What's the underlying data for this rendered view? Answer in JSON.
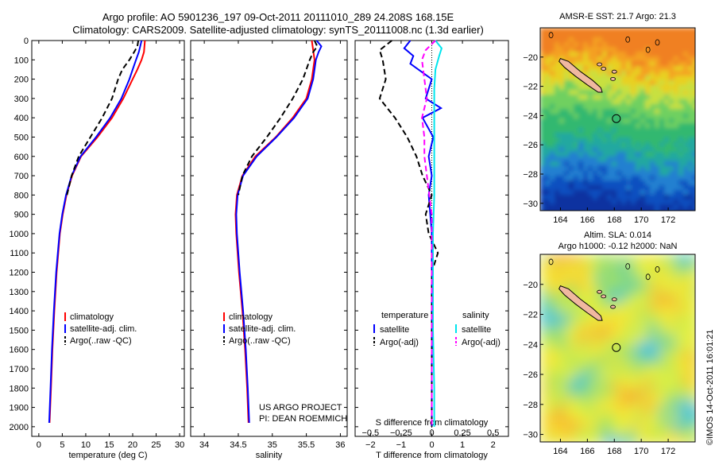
{
  "header": {
    "title1": "Argo profile: AO 5901236_197 09-Oct-2011 20111010_289 24.208S 168.15E",
    "title2": "Climatology: CARS2009. Satellite-adjusted climatology: synTS_20111008.nc (1.3d earlier)"
  },
  "maps": {
    "sst_title": "AMSR-E SST: 21.7 Argo: 21.3",
    "sla_title1": "Altim. SLA: 0.014",
    "sla_title2": "Argo h1000: -0.12 h2000: NaN"
  },
  "credit": "©IMOS 14-Oct-2011 16:01:21",
  "project": {
    "line1": "US ARGO PROJECT",
    "line2": "PI: DEAN ROEMMICH"
  },
  "colors": {
    "red": "#ff0000",
    "blue": "#0000ff",
    "black": "#000000",
    "cyan": "#00e5ee",
    "magenta": "#ff00ff",
    "land": "#f0b8a0"
  },
  "chart_data": [
    {
      "type": "line",
      "xlabel": "temperature (deg C)",
      "ylabel": "",
      "xlim": [
        -1.5,
        31
      ],
      "ylim": [
        2050,
        0
      ],
      "xticks": [
        0,
        5,
        10,
        15,
        20,
        25,
        30
      ],
      "yticks": [
        0,
        100,
        200,
        300,
        400,
        500,
        600,
        700,
        800,
        900,
        1000,
        1100,
        1200,
        1300,
        1400,
        1500,
        1600,
        1700,
        1800,
        1900,
        2000
      ],
      "legend": [
        "climatology",
        "satellite-adj. clim.",
        "Argo(..raw -QC)"
      ],
      "legend_position": "lower-middle",
      "series": [
        {
          "name": "climatology",
          "color": "#ff0000",
          "dash": "solid",
          "depth": [
            0,
            30,
            60,
            100,
            150,
            200,
            300,
            400,
            500,
            600,
            700,
            800,
            900,
            1000,
            1200,
            1400,
            1600,
            1800,
            1980
          ],
          "values": [
            22.6,
            22.5,
            22.4,
            21.9,
            21.0,
            20.0,
            18.0,
            15.6,
            12.5,
            9.0,
            7.1,
            5.9,
            5.1,
            4.5,
            3.8,
            3.3,
            2.9,
            2.6,
            2.3
          ]
        },
        {
          "name": "satellite-adj. clim.",
          "color": "#0000ff",
          "dash": "solid",
          "depth": [
            0,
            30,
            60,
            100,
            150,
            200,
            300,
            400,
            500,
            600,
            700,
            800,
            900,
            1000,
            1200,
            1400,
            1600,
            1800,
            1980
          ],
          "values": [
            21.9,
            21.6,
            21.3,
            20.7,
            20.0,
            19.3,
            17.6,
            15.2,
            12.2,
            8.9,
            7.0,
            5.8,
            5.0,
            4.4,
            3.7,
            3.2,
            2.8,
            2.5,
            2.2
          ]
        },
        {
          "name": "Argo(..raw -QC)",
          "color": "#000000",
          "dash": "dash",
          "depth": [
            0,
            30,
            60,
            100,
            150,
            200,
            300,
            400,
            500,
            600,
            700,
            800
          ],
          "values": [
            21.2,
            21.0,
            20.3,
            19.3,
            17.8,
            16.9,
            15.6,
            13.5,
            11.0,
            8.5,
            7.0,
            6.0
          ]
        }
      ]
    },
    {
      "type": "line",
      "xlabel": "salinity",
      "ylabel": "",
      "xlim": [
        33.8,
        36.1
      ],
      "ylim": [
        2050,
        0
      ],
      "xticks": [
        34,
        34.5,
        35,
        35.5,
        36
      ],
      "legend": [
        "climatology",
        "satellite-adj. clim.",
        "Argo(..raw -QC)"
      ],
      "legend_position": "lower-middle",
      "series": [
        {
          "name": "climatology",
          "color": "#ff0000",
          "dash": "solid",
          "depth": [
            0,
            50,
            100,
            200,
            300,
            400,
            500,
            600,
            700,
            800,
            900,
            1000,
            1200,
            1400,
            1600,
            1800,
            1980
          ],
          "values": [
            35.58,
            35.6,
            35.62,
            35.58,
            35.5,
            35.3,
            35.05,
            34.75,
            34.56,
            34.48,
            34.46,
            34.47,
            34.51,
            34.56,
            34.6,
            34.63,
            34.65
          ]
        },
        {
          "name": "satellite-adj. clim.",
          "color": "#0000ff",
          "dash": "solid",
          "depth": [
            0,
            30,
            60,
            100,
            200,
            300,
            400,
            500,
            600,
            700,
            800,
            900,
            1000,
            1200,
            1400,
            1600,
            1800,
            1980
          ],
          "values": [
            35.65,
            35.72,
            35.68,
            35.64,
            35.6,
            35.52,
            35.32,
            35.06,
            34.77,
            34.57,
            34.49,
            34.47,
            34.48,
            34.52,
            34.57,
            34.61,
            34.64,
            34.66
          ]
        },
        {
          "name": "Argo(..raw -QC)",
          "color": "#000000",
          "dash": "dash",
          "depth": [
            0,
            30,
            60,
            100,
            200,
            300,
            400,
            500,
            600,
            700,
            800
          ],
          "values": [
            35.62,
            35.66,
            35.6,
            35.55,
            35.45,
            35.3,
            35.12,
            34.92,
            34.7,
            34.56,
            34.5
          ]
        }
      ]
    },
    {
      "type": "line",
      "xlabel": "T difference from climatology",
      "xlabel_top": "S difference from climatology",
      "ylabel": "",
      "xlim": [
        -2.5,
        2.5
      ],
      "ylim": [
        2050,
        0
      ],
      "xticks": [
        -2,
        -1,
        0,
        1,
        2
      ],
      "xtick_labels": [
        "−2",
        "−1",
        "0",
        "1",
        "2"
      ],
      "xticks_s": [
        -0.5,
        -0.25,
        0,
        0.25,
        0.5
      ],
      "xtick_labels_s": [
        "−0.5",
        "−0.25",
        "0",
        "0.25",
        "0.5"
      ],
      "legend_header_t": "temperature",
      "legend_header_s": "salinity",
      "legend": [
        "satellite",
        "Argo(-adj)",
        "satellite",
        "Argo(-adj)"
      ],
      "legend_position": "lower-middle",
      "series": [
        {
          "name": "satellite",
          "group": "temperature",
          "color": "#0000ff",
          "dash": "solid",
          "units": "T",
          "depth": [
            0,
            40,
            80,
            120,
            200,
            300,
            350,
            400,
            500,
            600,
            700,
            800,
            900,
            1000,
            1200,
            1500,
            2000
          ],
          "values": [
            -0.7,
            -0.9,
            -0.6,
            -0.7,
            0.0,
            -0.2,
            0.3,
            -0.3,
            0.05,
            -0.1,
            0.0,
            -0.1,
            -0.05,
            0.0,
            0.0,
            0.0,
            0.0
          ]
        },
        {
          "name": "Argo(-adj)",
          "group": "temperature",
          "color": "#000000",
          "dash": "dash",
          "units": "T",
          "depth": [
            0,
            50,
            100,
            200,
            300,
            400,
            500,
            600,
            700,
            800,
            900,
            1000,
            1100,
            1200,
            1500,
            2000
          ],
          "values": [
            -1.3,
            -1.7,
            -1.6,
            -1.5,
            -1.7,
            -1.2,
            -0.8,
            -0.5,
            -0.3,
            0.0,
            -0.2,
            -0.1,
            0.2,
            0.0,
            0.0,
            0.0
          ]
        },
        {
          "name": "satellite",
          "group": "salinity",
          "color": "#00e5ee",
          "dash": "solid",
          "units": "S",
          "depth": [
            0,
            40,
            80,
            150,
            250,
            400,
            600,
            800,
            1000,
            1200,
            1500,
            1800,
            2000
          ],
          "values": [
            0.03,
            0.08,
            0.06,
            0.03,
            0.02,
            0.02,
            0.02,
            0.02,
            0.01,
            0.01,
            0.01,
            0.02,
            0.02
          ]
        },
        {
          "name": "Argo(-adj)",
          "group": "salinity",
          "color": "#ff00ff",
          "dash": "dash",
          "units": "S",
          "depth": [
            0,
            50,
            100,
            200,
            300,
            400,
            500,
            600,
            700,
            800,
            900,
            1000,
            1200,
            1500,
            2000
          ],
          "values": [
            0.03,
            -0.05,
            -0.08,
            -0.06,
            -0.04,
            -0.08,
            -0.06,
            -0.06,
            -0.04,
            -0.02,
            0.0,
            0.0,
            0.0,
            0.0,
            0.0
          ]
        }
      ]
    },
    {
      "type": "heatmap",
      "title": "AMSR-E SST: 21.7 Argo: 21.3",
      "xlim": [
        162.5,
        174
      ],
      "ylim": [
        -30.5,
        -18
      ],
      "xticks": [
        164,
        166,
        168,
        170,
        172
      ],
      "yticks": [
        -20,
        -22,
        -24,
        -26,
        -28,
        -30
      ],
      "marker": {
        "lon": 168.15,
        "lat": -24.208
      }
    },
    {
      "type": "heatmap",
      "title": "Altim. SLA: 0.014",
      "xlim": [
        162.5,
        174
      ],
      "ylim": [
        -30.5,
        -18
      ],
      "xticks": [
        164,
        166,
        168,
        170,
        172
      ],
      "yticks": [
        -20,
        -22,
        -24,
        -26,
        -28,
        -30
      ],
      "marker": {
        "lon": 168.15,
        "lat": -24.208
      }
    }
  ]
}
